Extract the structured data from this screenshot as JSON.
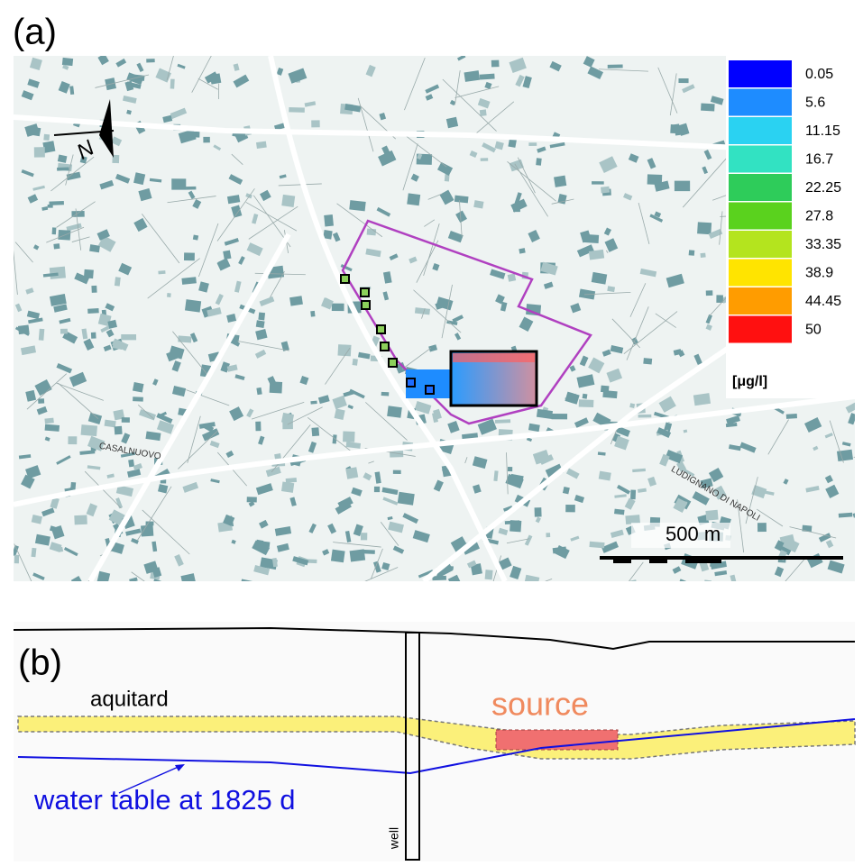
{
  "panel_a": {
    "label": "(a)",
    "north": "N",
    "legend": {
      "entries": [
        {
          "label": "0.05",
          "color": "#0000ff"
        },
        {
          "label": "5.6",
          "color": "#1e8cff"
        },
        {
          "label": "11.15",
          "color": "#2ad2f2"
        },
        {
          "label": "16.7",
          "color": "#32e2c2"
        },
        {
          "label": "22.25",
          "color": "#2ecc5a"
        },
        {
          "label": "27.8",
          "color": "#5ad21e"
        },
        {
          "label": "33.35",
          "color": "#b4e41e"
        },
        {
          "label": "38.9",
          "color": "#ffe400"
        },
        {
          "label": "44.45",
          "color": "#ff9c00"
        },
        {
          "label": "50",
          "color": "#ff1010"
        }
      ],
      "unit": "[μg/l]"
    },
    "scale_bar": "500 m",
    "place_names": [
      "CASALNUOVO",
      "LUDIGNANO DI NAPOLI"
    ]
  },
  "panel_b": {
    "label": "(b)",
    "aquitard": "aquitard",
    "source": "source",
    "water_table": "water table at 1825 d",
    "well": "well"
  }
}
